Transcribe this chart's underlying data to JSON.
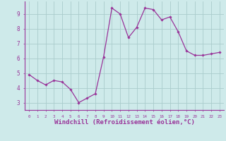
{
  "x": [
    0,
    1,
    2,
    3,
    4,
    5,
    6,
    7,
    8,
    9,
    10,
    11,
    12,
    13,
    14,
    15,
    16,
    17,
    18,
    19,
    20,
    21,
    22,
    23
  ],
  "y": [
    4.9,
    4.5,
    4.2,
    4.5,
    4.4,
    3.9,
    3.0,
    3.3,
    3.6,
    6.1,
    9.4,
    9.0,
    7.4,
    8.1,
    9.4,
    9.3,
    8.6,
    8.8,
    7.8,
    6.5,
    6.2,
    6.2,
    6.3,
    6.4
  ],
  "line_color": "#993399",
  "marker": "D",
  "marker_size": 1.8,
  "line_width": 0.9,
  "xlabel": "Windchill (Refroidissement éolien,°C)",
  "xlabel_fontsize": 6.5,
  "ylabel_ticks": [
    3,
    4,
    5,
    6,
    7,
    8,
    9
  ],
  "xtick_labels": [
    "0",
    "1",
    "2",
    "3",
    "4",
    "5",
    "6",
    "7",
    "8",
    "9",
    "10",
    "11",
    "12",
    "13",
    "14",
    "15",
    "16",
    "17",
    "18",
    "19",
    "20",
    "21",
    "22",
    "23"
  ],
  "ylim": [
    2.5,
    9.85
  ],
  "xlim": [
    -0.5,
    23.5
  ],
  "bg_color": "#ceeaea",
  "grid_color": "#aacccc",
  "tick_color": "#993399",
  "label_color": "#993399"
}
